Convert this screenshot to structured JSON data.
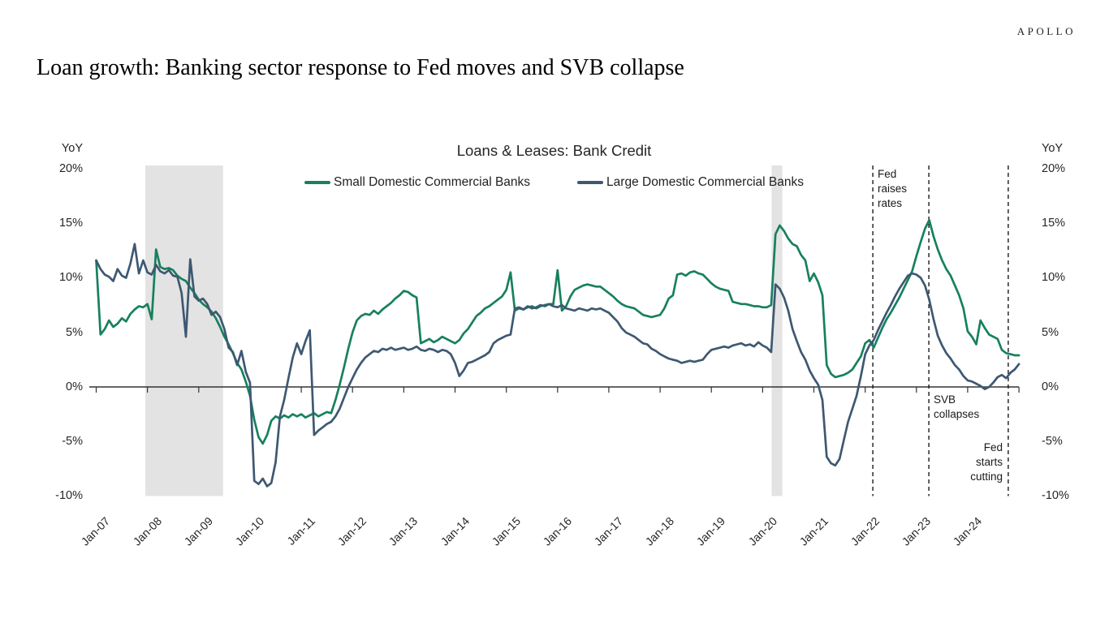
{
  "brand": "APOLLO",
  "page_title": "Loan growth: Banking sector response to Fed moves and SVB collapse",
  "chart_data": {
    "type": "line",
    "title": "Loans & Leases: Bank Credit",
    "ylabel": "YoY",
    "ylim": [
      -10,
      20
    ],
    "y_ticks_percent": [
      20,
      15,
      10,
      5,
      0,
      -5,
      -10
    ],
    "y_tick_labels": [
      "20%",
      "15%",
      "10%",
      "5%",
      "0%",
      "-5%",
      "-10%"
    ],
    "x_unit": "months_since_Jan_2007",
    "x_tick_labels": [
      "Jan-07",
      "Jan-08",
      "Jan-09",
      "Jan-10",
      "Jan-11",
      "Jan-12",
      "Jan-13",
      "Jan-14",
      "Jan-15",
      "Jan-16",
      "Jan-17",
      "Jan-18",
      "Jan-19",
      "Jan-20",
      "Jan-21",
      "Jan-22",
      "Jan-23",
      "Jan-24"
    ],
    "grid": false,
    "legend_position": "top-center",
    "axis_color": "#333333",
    "band_color": "#e3e3e3",
    "event_line_color": "#1a1a1a",
    "series": [
      {
        "name": "Small Domestic Commercial Banks",
        "color": "#17805f",
        "values": [
          11.6,
          4.8,
          5.3,
          6.1,
          5.5,
          5.8,
          6.3,
          6.0,
          6.7,
          7.1,
          7.4,
          7.3,
          7.6,
          6.2,
          12.6,
          11.0,
          10.8,
          10.9,
          10.7,
          10.2,
          9.9,
          9.7,
          9.1,
          8.6,
          8.0,
          7.6,
          7.3,
          6.9,
          6.3,
          5.5,
          4.6,
          3.9,
          3.1,
          2.2,
          1.6,
          0.5,
          -0.8,
          -3.0,
          -4.6,
          -5.2,
          -4.4,
          -3.1,
          -2.7,
          -2.9,
          -2.6,
          -2.8,
          -2.5,
          -2.7,
          -2.5,
          -2.8,
          -2.6,
          -2.4,
          -2.7,
          -2.5,
          -2.3,
          -2.4,
          -1.2,
          0.2,
          1.8,
          3.5,
          5.0,
          6.1,
          6.5,
          6.7,
          6.6,
          7.0,
          6.7,
          7.1,
          7.4,
          7.7,
          8.1,
          8.4,
          8.8,
          8.7,
          8.4,
          8.2,
          4.0,
          4.2,
          4.4,
          4.1,
          4.3,
          4.6,
          4.4,
          4.2,
          4.0,
          4.3,
          4.9,
          5.3,
          5.9,
          6.5,
          6.8,
          7.2,
          7.4,
          7.7,
          8.0,
          8.3,
          8.9,
          10.5,
          7.0,
          7.2,
          7.1,
          7.3,
          7.4,
          7.2,
          7.4,
          7.5,
          7.6,
          7.6,
          10.7,
          7.0,
          7.4,
          8.3,
          8.9,
          9.1,
          9.3,
          9.4,
          9.3,
          9.2,
          9.2,
          8.9,
          8.6,
          8.3,
          7.9,
          7.6,
          7.4,
          7.3,
          7.2,
          6.9,
          6.6,
          6.5,
          6.4,
          6.5,
          6.6,
          7.2,
          8.1,
          8.4,
          10.3,
          10.4,
          10.2,
          10.5,
          10.6,
          10.4,
          10.3,
          9.9,
          9.5,
          9.2,
          9.0,
          8.9,
          8.8,
          7.8,
          7.7,
          7.6,
          7.6,
          7.5,
          7.4,
          7.4,
          7.3,
          7.3,
          7.5,
          14.0,
          14.8,
          14.3,
          13.6,
          13.1,
          12.9,
          12.1,
          11.6,
          9.7,
          10.4,
          9.6,
          8.4,
          2.0,
          1.2,
          0.9,
          1.0,
          1.1,
          1.3,
          1.6,
          2.2,
          2.8,
          4.0,
          4.3,
          3.6,
          4.5,
          5.4,
          6.2,
          6.8,
          7.5,
          8.2,
          9.0,
          9.8,
          10.6,
          12.0,
          13.3,
          14.5,
          15.3,
          13.8,
          12.6,
          11.6,
          10.8,
          10.2,
          9.3,
          8.4,
          7.2,
          5.1,
          4.6,
          3.9,
          6.1,
          5.4,
          4.8,
          4.6,
          4.4,
          3.4,
          3.1,
          3.0,
          2.9,
          2.9
        ]
      },
      {
        "name": "Large Domestic Commercial Banks",
        "color": "#3e5872",
        "values": [
          11.6,
          10.8,
          10.3,
          10.1,
          9.7,
          10.8,
          10.2,
          10.0,
          11.3,
          13.1,
          10.4,
          11.6,
          10.5,
          10.3,
          11.2,
          10.6,
          10.4,
          10.7,
          10.2,
          10.1,
          8.6,
          4.6,
          11.7,
          8.3,
          7.9,
          8.1,
          7.6,
          6.6,
          6.9,
          6.4,
          5.3,
          3.6,
          3.2,
          2.0,
          3.3,
          1.4,
          0.4,
          -8.6,
          -8.9,
          -8.4,
          -9.1,
          -8.8,
          -6.9,
          -2.7,
          -1.2,
          0.8,
          2.7,
          4.0,
          3.0,
          4.2,
          5.2,
          -4.4,
          -4.0,
          -3.7,
          -3.4,
          -3.2,
          -2.7,
          -2.0,
          -1.0,
          0.0,
          0.8,
          1.6,
          2.2,
          2.7,
          3.0,
          3.3,
          3.2,
          3.5,
          3.4,
          3.6,
          3.4,
          3.5,
          3.6,
          3.4,
          3.5,
          3.7,
          3.4,
          3.3,
          3.5,
          3.4,
          3.2,
          3.4,
          3.3,
          3.0,
          2.2,
          1.0,
          1.5,
          2.2,
          2.3,
          2.5,
          2.7,
          2.9,
          3.2,
          4.0,
          4.3,
          4.5,
          4.7,
          4.8,
          7.2,
          7.3,
          7.1,
          7.4,
          7.2,
          7.3,
          7.5,
          7.4,
          7.6,
          7.4,
          7.3,
          7.5,
          7.2,
          7.1,
          7.0,
          7.2,
          7.1,
          7.0,
          7.2,
          7.1,
          7.2,
          7.0,
          6.8,
          6.4,
          6.0,
          5.4,
          5.0,
          4.8,
          4.6,
          4.3,
          4.0,
          3.9,
          3.5,
          3.3,
          3.0,
          2.8,
          2.6,
          2.5,
          2.4,
          2.2,
          2.3,
          2.4,
          2.3,
          2.4,
          2.5,
          3.0,
          3.4,
          3.5,
          3.6,
          3.7,
          3.6,
          3.8,
          3.9,
          4.0,
          3.8,
          3.9,
          3.7,
          4.1,
          3.8,
          3.6,
          3.2,
          9.4,
          9.0,
          8.2,
          7.0,
          5.3,
          4.2,
          3.2,
          2.5,
          1.5,
          0.8,
          0.2,
          -1.2,
          -6.4,
          -7.0,
          -7.2,
          -6.6,
          -4.9,
          -3.2,
          -2.0,
          -0.8,
          1.0,
          3.0,
          3.8,
          4.3,
          5.2,
          6.0,
          6.8,
          7.5,
          8.3,
          9.0,
          9.6,
          10.2,
          10.4,
          10.3,
          10.0,
          9.3,
          8.0,
          6.2,
          4.7,
          3.8,
          3.1,
          2.6,
          2.0,
          1.6,
          1.0,
          0.6,
          0.5,
          0.3,
          0.1,
          -0.2,
          0.0,
          0.4,
          0.9,
          1.1,
          0.8,
          1.3,
          1.6,
          2.1
        ]
      }
    ],
    "recession_bands": [
      {
        "start_month": 11.5,
        "end_month": 29.7
      },
      {
        "start_month": 158.1,
        "end_month": 160.6
      }
    ],
    "event_lines": [
      {
        "label": "Fed raises rates",
        "month": 181.8
      },
      {
        "label": "SVB collapses",
        "month": 194.9
      },
      {
        "label": "Fed starts cutting",
        "month": 213.5
      }
    ]
  }
}
